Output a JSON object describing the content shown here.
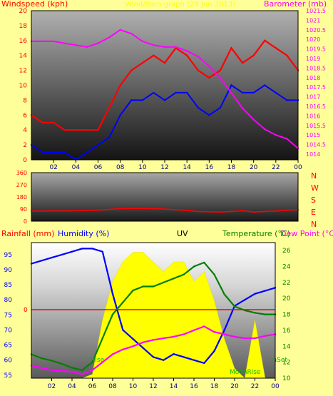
{
  "chart_data": [
    {
      "type": "line",
      "title": "Wind/Baro graph (29 Jun 2013)",
      "ylabel_left": "Windspeed (kph)",
      "ylabel_right": "Barometer (mb)",
      "x_ticks": [
        "02",
        "04",
        "06",
        "08",
        "10",
        "12",
        "14",
        "16",
        "18",
        "20",
        "22",
        "00"
      ],
      "y_left_ticks": [
        0,
        2,
        4,
        6,
        8,
        10,
        12,
        14,
        16,
        18,
        20
      ],
      "y_left_lim": [
        0,
        20
      ],
      "y_right_ticks": [
        "1014",
        "1014.5",
        "1015",
        "1015.5",
        "1016",
        "1016.5",
        "1017",
        "1017.5",
        "1018",
        "1018.5",
        "1019",
        "1019.5",
        "1020",
        "1020.5",
        "1021",
        "1021.5"
      ],
      "y_right_lim": [
        1013.7,
        1021.5
      ],
      "x": [
        0,
        1,
        2,
        3,
        4,
        5,
        6,
        7,
        8,
        9,
        10,
        11,
        12,
        13,
        14,
        15,
        16,
        17,
        18,
        19,
        20,
        21,
        22,
        23,
        24
      ],
      "series": [
        {
          "name": "gust",
          "color": "#ff0000",
          "values": [
            6,
            5,
            5,
            4,
            4,
            4,
            4,
            7,
            10,
            12,
            13,
            14,
            13,
            15,
            14,
            12,
            11,
            12,
            15,
            13,
            14,
            16,
            15,
            14,
            12
          ]
        },
        {
          "name": "average",
          "color": "#0000ff",
          "values": [
            2,
            1,
            1,
            1,
            0,
            1,
            2,
            3,
            6,
            8,
            8,
            9,
            8,
            9,
            9,
            7,
            6,
            7,
            10,
            9,
            9,
            10,
            9,
            8,
            8
          ]
        },
        {
          "name": "barometer",
          "color": "#ff00ff",
          "axis": "right",
          "values": [
            1019.9,
            1019.9,
            1019.9,
            1019.8,
            1019.7,
            1019.6,
            1019.8,
            1020.1,
            1020.5,
            1020.3,
            1019.9,
            1019.7,
            1019.6,
            1019.6,
            1019.4,
            1019.1,
            1018.6,
            1018,
            1017.2,
            1016.4,
            1015.8,
            1015.3,
            1015,
            1014.8,
            1014.3
          ]
        }
      ]
    },
    {
      "type": "line",
      "ylabel_left": "",
      "y_left_ticks": [
        0,
        90,
        180,
        270,
        360
      ],
      "y_left_lim": [
        0,
        360
      ],
      "right_labels": [
        "N",
        "W",
        "S",
        "E",
        "N"
      ],
      "x_ticks": [],
      "x": [
        0,
        1,
        2,
        3,
        4,
        5,
        6,
        7,
        8,
        9,
        10,
        11,
        12,
        13,
        14,
        15,
        16,
        17,
        18,
        19,
        20,
        21,
        22,
        23,
        24
      ],
      "series": [
        {
          "name": "wind direction",
          "color": "#ff0000",
          "values": [
            75,
            75,
            76,
            76,
            78,
            80,
            82,
            88,
            93,
            95,
            96,
            93,
            90,
            85,
            80,
            72,
            70,
            68,
            72,
            78,
            68,
            72,
            75,
            82,
            85
          ]
        }
      ]
    },
    {
      "type": "line",
      "legend": [
        "Rainfall (mm)",
        "Humidity (%)",
        "UV",
        "Temperature (°C)",
        "Dew Point (°C)"
      ],
      "ylabel_left": "Humidity (%)",
      "ylabel_right": "Temperature (°C)",
      "x_ticks": [
        "02",
        "04",
        "06",
        "08",
        "10",
        "12",
        "14",
        "16",
        "18",
        "20",
        "22",
        "00"
      ],
      "y_left_ticks": [
        55,
        60,
        65,
        70,
        75,
        80,
        85,
        90,
        95
      ],
      "y_left_lim": [
        54,
        99
      ],
      "y_right_ticks": [
        10,
        12,
        14,
        16,
        18,
        20,
        22,
        24,
        26
      ],
      "y_right_lim": [
        10,
        27
      ],
      "rain_zero_label": "0",
      "annotations": [
        "SunRise",
        "SunSet",
        "MoonRise"
      ],
      "x": [
        0,
        1,
        2,
        3,
        4,
        5,
        6,
        7,
        8,
        9,
        10,
        11,
        12,
        13,
        14,
        15,
        16,
        17,
        18,
        19,
        20,
        21,
        22,
        23,
        24
      ],
      "series": [
        {
          "name": "Humidity (%)",
          "color": "#0000ff",
          "axis": "left",
          "values": [
            92,
            93,
            94,
            95,
            96,
            97,
            97,
            96,
            82,
            70,
            67,
            64,
            61,
            60,
            62,
            61,
            60,
            59,
            63,
            70,
            78,
            80,
            82,
            83,
            84
          ]
        },
        {
          "name": "Temperature (°C)",
          "color": "#008000",
          "axis": "right",
          "values": [
            13,
            12.5,
            12.2,
            11.8,
            11.3,
            11,
            12,
            15,
            18,
            19.5,
            21,
            21.5,
            21.5,
            22,
            22.5,
            23,
            24,
            24.5,
            23,
            20.5,
            19,
            18.5,
            18.2,
            18,
            18
          ]
        },
        {
          "name": "Dew Point (°C)",
          "color": "#ff00ff",
          "axis": "right",
          "values": [
            11.6,
            11.3,
            11,
            10.9,
            10.8,
            10.5,
            11,
            12,
            13,
            13.6,
            14,
            14.5,
            14.8,
            15,
            15.2,
            15.5,
            16,
            16.5,
            15.8,
            15.5,
            15.2,
            15,
            15,
            15.3,
            15.5
          ]
        },
        {
          "name": "UV",
          "color": "#ffff00",
          "values": [
            0,
            0,
            0,
            0,
            0,
            0,
            0.2,
            3,
            5,
            6,
            6.5,
            6.5,
            6,
            5.5,
            6,
            6,
            5,
            5.5,
            4,
            2,
            0.5,
            0,
            3,
            0,
            0
          ]
        }
      ]
    }
  ],
  "labels": {
    "top_title": "Wind/Baro graph (29 Jun 2013)",
    "windspeed": "Windspeed (kph)",
    "barometer": "Barometer (mb)",
    "rainfall": "Rainfall (mm)",
    "humidity": "Humidity (%)",
    "uv": "UV",
    "temperature": "Temperature (°C)",
    "dewpoint": "Dew Point (°C)",
    "sunrise": "SunRise",
    "sunset": "SunSet",
    "moonrise": "MoonRise",
    "rain_zero": "0"
  },
  "colors": {
    "background": "#ffff99",
    "gust": "#ff0000",
    "average": "#0000ff",
    "barometer": "#ff00ff",
    "humidity": "#0000ff",
    "temperature": "#008000",
    "dewpoint": "#ff00ff",
    "uv": "#ffff00",
    "rainline": "#ff0000",
    "axis": "#000000"
  }
}
